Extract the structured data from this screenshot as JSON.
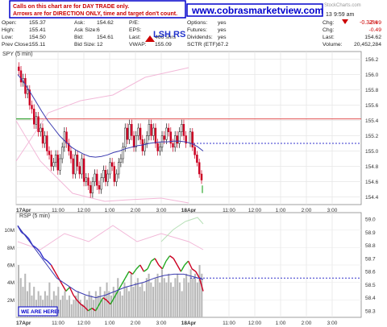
{
  "header": {
    "notice_line1": "Calls on this chart are for DAY TRADE only.",
    "notice_line2": "Arrows are for DIRECTION ONLY, time and target don't count.",
    "website": "www.cobrasmarketview.com",
    "watermark": "StockCharts.com",
    "date_fragment": "13",
    "time": "9:59 am",
    "pattern_label": "LSH RS",
    "quote_rows": [
      [
        "Open:",
        "155.37",
        "Ask:",
        "154.62",
        "P/E:",
        "",
        "Options:",
        "yes",
        "Chg:",
        "-0.49"
      ],
      [
        "High:",
        "155.41",
        "Ask Size:",
        "6",
        "EPS:",
        "",
        "Futures:",
        "yes",
        "Chg:",
        "-0.49"
      ],
      [
        "Low:",
        "154.50",
        "Bid:",
        "154.61",
        "Last:",
        "466 shrs",
        "Dividends:",
        "yes",
        "Last:",
        "154.62"
      ],
      [
        "Prev Close:",
        "155.11",
        "Bid Size:",
        "12",
        "VWAP:",
        "155.09",
        "SCTR (ETF):",
        "67.2",
        "Volume:",
        "20,452,284"
      ]
    ],
    "pct_change": "-0.32%",
    "colors": {
      "notice": "#cc0000",
      "website": "#0000cc",
      "negative": "#cc0000"
    }
  },
  "chart_data": [
    {
      "type": "candlestick",
      "title": "SPY (5 min)",
      "x_tick_labels": [
        "17Apr",
        "11:00",
        "12:00",
        "1:00",
        "2:00",
        "3:00",
        "18Apr",
        "11:00",
        "12:00",
        "1:00",
        "2:00",
        "3:00"
      ],
      "y_tick_labels": [
        "156.2",
        "156.0",
        "155.8",
        "155.6",
        "155.4",
        "155.2",
        "155.0",
        "154.8",
        "154.6",
        "154.4"
      ],
      "ylim": [
        154.3,
        156.3
      ],
      "horizontal_lines": [
        {
          "value": 155.4,
          "color": "#e05050",
          "style": "solid"
        },
        {
          "value": 155.4,
          "color": "#4caf50",
          "style": "solid",
          "span": "left-edge"
        },
        {
          "value": 155.1,
          "color": "#3333cc",
          "style": "dotted",
          "span": "after-last-bar"
        }
      ],
      "close_series_17apr": [
        156.05,
        155.9,
        155.95,
        155.75,
        155.8,
        155.6,
        155.55,
        155.35,
        155.45,
        155.25,
        155.3,
        155.1,
        155.2,
        155.0,
        154.95,
        154.8,
        154.85,
        154.95,
        154.75,
        154.9,
        155.05,
        155.25,
        155.1,
        155.0,
        154.9,
        154.7,
        154.95,
        154.8,
        154.7,
        154.9,
        154.6,
        154.65,
        154.55,
        154.45,
        154.6,
        154.7,
        154.55,
        154.5,
        154.65,
        154.75,
        154.6,
        154.7,
        154.85,
        154.8,
        154.6,
        154.7,
        154.85,
        154.9,
        155.05,
        155.3,
        155.15,
        155.35,
        155.2,
        155.05,
        155.2,
        155.3,
        155.15,
        155.0,
        155.1,
        155.2,
        155.35,
        155.2,
        155.3,
        155.1,
        155.0,
        155.05,
        155.2,
        155.15,
        155.3,
        155.25,
        155.1,
        155.05,
        155.2,
        155.1,
        155.25,
        155.35,
        155.2,
        155.1
      ],
      "close_series_18apr": [
        155.25,
        155.05,
        154.95,
        154.85,
        154.7,
        154.62
      ],
      "moving_average": [
        156.0,
        155.9,
        155.78,
        155.65,
        155.52,
        155.4,
        155.3,
        155.2,
        155.12,
        155.05,
        155.0,
        154.96,
        154.93,
        154.92,
        154.93,
        154.95,
        154.98,
        155.0,
        155.03,
        155.05,
        155.07,
        155.08,
        155.1,
        155.11,
        155.12,
        155.12,
        155.13,
        155.13,
        155.12,
        155.1,
        155.06,
        155.0
      ],
      "moving_average_color": "#3a3ab0"
    },
    {
      "type": "bar",
      "title": "RSP (5 min)",
      "x_tick_labels": [
        "17Apr",
        "11:00",
        "12:00",
        "1:00",
        "2:00",
        "3:00",
        "18Apr",
        "11:00",
        "12:00",
        "1:00",
        "2:00",
        "3:00"
      ],
      "y_left_tick_labels": [
        "10M",
        "8M",
        "6M",
        "4M",
        "2M"
      ],
      "y_right_tick_labels": [
        "59.0",
        "58.9",
        "58.8",
        "58.7",
        "58.6",
        "58.5",
        "58.4",
        "58.3"
      ],
      "volume_millions": [
        6,
        4.5,
        3.5,
        5,
        3,
        4,
        2.5,
        3.5,
        2,
        3,
        2.5,
        2,
        3,
        2.5,
        4,
        2,
        3,
        2.5,
        3.5,
        2,
        2.5,
        3,
        2,
        2.5,
        1.5,
        2,
        2.5,
        3,
        2,
        1.5,
        2.5,
        2,
        3,
        2.5,
        2,
        3,
        2.5,
        3.5,
        2,
        3,
        4,
        3,
        2.5,
        3.5,
        3,
        4.5,
        3,
        2.5,
        4,
        3.5,
        3,
        5,
        3.5,
        4,
        4.5,
        3.5,
        4,
        3,
        4.5,
        5,
        4,
        3.5,
        4.5,
        5,
        4,
        5.5,
        4.5,
        4,
        5,
        4,
        3.5,
        4.5,
        5,
        4,
        3,
        4.5,
        5,
        4,
        5.5,
        4.5,
        5,
        4,
        6,
        5
      ],
      "annotation": "WE ARE HERE!",
      "price_line": {
        "value": 58.55,
        "color": "#3333cc",
        "style": "dotted"
      }
    }
  ]
}
